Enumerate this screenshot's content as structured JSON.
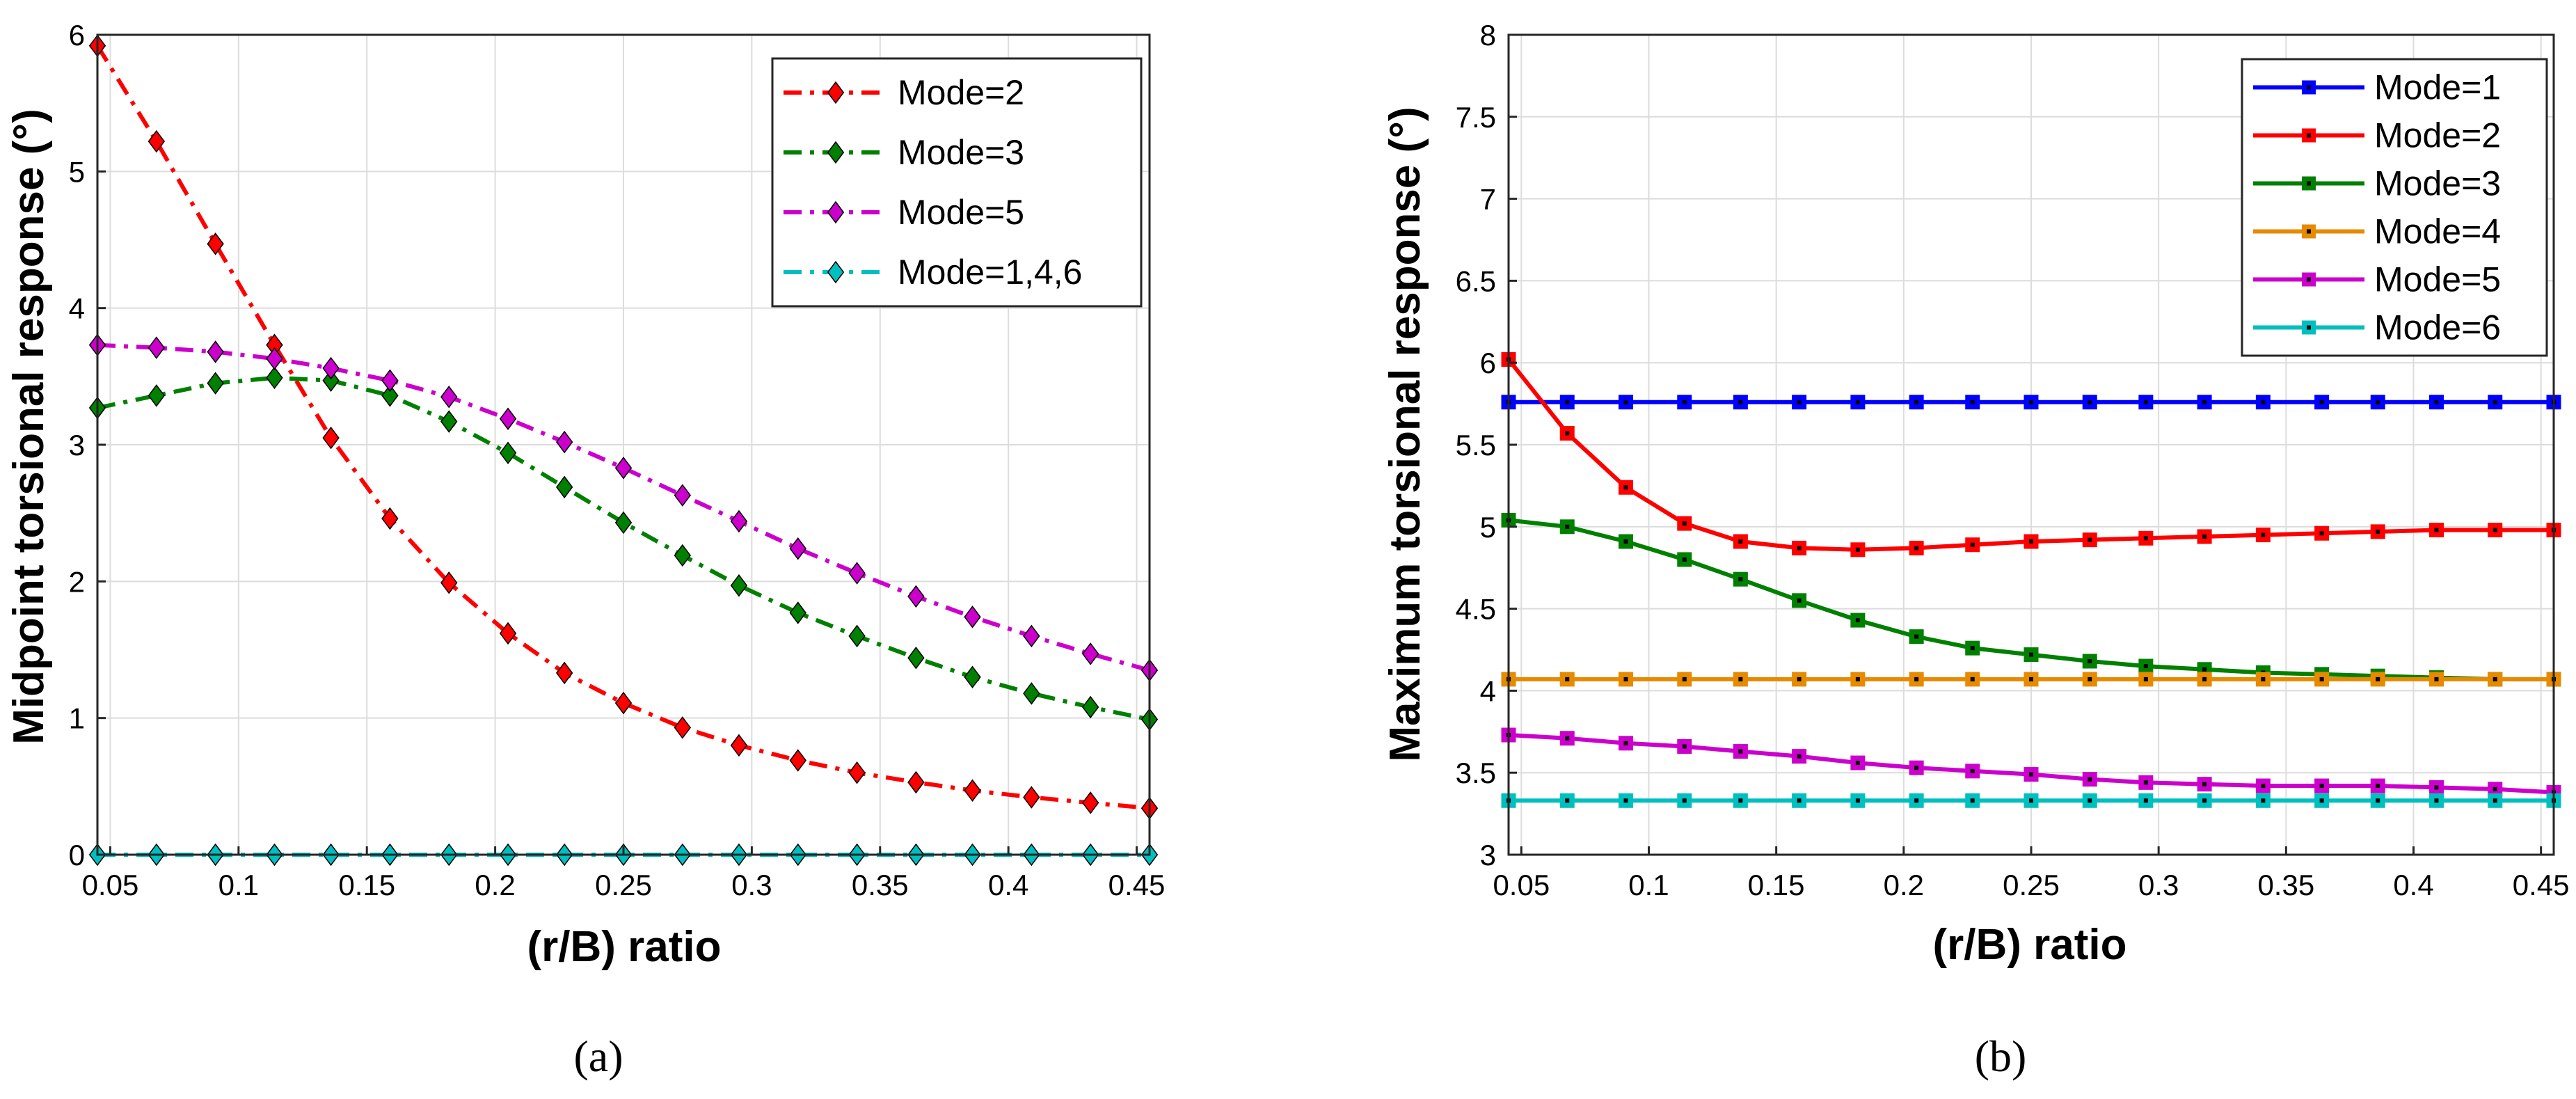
{
  "chart_data": [
    {
      "type": "line",
      "caption": "(a)",
      "xlabel": "(r/B) ratio",
      "ylabel": "Midpoint torsional response (°)",
      "xlim": [
        0.045,
        0.455
      ],
      "ylim": [
        0,
        6
      ],
      "xticks": [
        0.05,
        0.1,
        0.15,
        0.2,
        0.25,
        0.3,
        0.35,
        0.4,
        0.45
      ],
      "xtick_labels": [
        "0.05",
        "0.1",
        "0.15",
        "0.2",
        "0.25",
        "0.3",
        "0.35",
        "0.4",
        "0.45"
      ],
      "yticks": [
        0,
        1,
        2,
        3,
        4,
        5,
        6
      ],
      "ytick_labels": [
        "0",
        "1",
        "2",
        "3",
        "4",
        "5",
        "6"
      ],
      "grid": true,
      "legend_position": "top-right",
      "x": [
        0.045,
        0.068,
        0.091,
        0.114,
        0.136,
        0.159,
        0.182,
        0.205,
        0.227,
        0.25,
        0.273,
        0.295,
        0.318,
        0.341,
        0.364,
        0.386,
        0.409,
        0.432,
        0.455
      ],
      "series": [
        {
          "name": "Mode=2",
          "color": "#ff0000",
          "dash": "dashdot",
          "marker": "diamond",
          "values": [
            5.92,
            5.22,
            4.47,
            3.73,
            3.05,
            2.46,
            1.99,
            1.62,
            1.33,
            1.11,
            0.93,
            0.8,
            0.69,
            0.6,
            0.53,
            0.47,
            0.42,
            0.38,
            0.34
          ]
        },
        {
          "name": "Mode=3",
          "color": "#008000",
          "dash": "dashdot",
          "marker": "diamond",
          "values": [
            3.27,
            3.36,
            3.45,
            3.49,
            3.47,
            3.36,
            3.17,
            2.94,
            2.69,
            2.43,
            2.19,
            1.97,
            1.77,
            1.6,
            1.44,
            1.3,
            1.18,
            1.08,
            0.99
          ]
        },
        {
          "name": "Mode=5",
          "color": "#cc00cc",
          "dash": "dashdot",
          "marker": "diamond",
          "values": [
            3.73,
            3.71,
            3.68,
            3.63,
            3.56,
            3.47,
            3.35,
            3.19,
            3.02,
            2.83,
            2.63,
            2.44,
            2.24,
            2.06,
            1.89,
            1.74,
            1.6,
            1.47,
            1.35
          ]
        },
        {
          "name": "Mode=1,4,6",
          "color": "#00bfbf",
          "dash": "dashdot",
          "marker": "diamond",
          "values": [
            0,
            0,
            0,
            0,
            0,
            0,
            0,
            0,
            0,
            0,
            0,
            0,
            0,
            0,
            0,
            0,
            0,
            0,
            0
          ]
        }
      ]
    },
    {
      "type": "line",
      "caption": "(b)",
      "xlabel": "(r/B) ratio",
      "ylabel": "Maximum torsional response (°)",
      "xlim": [
        0.045,
        0.455
      ],
      "ylim": [
        3,
        8
      ],
      "xticks": [
        0.05,
        0.1,
        0.15,
        0.2,
        0.25,
        0.3,
        0.35,
        0.4,
        0.45
      ],
      "xtick_labels": [
        "0.05",
        "0.1",
        "0.15",
        "0.2",
        "0.25",
        "0.3",
        "0.35",
        "0.4",
        "0.45"
      ],
      "yticks": [
        3,
        3.5,
        4,
        4.5,
        5,
        5.5,
        6,
        6.5,
        7,
        7.5,
        8
      ],
      "ytick_labels": [
        "3",
        "3.5",
        "4",
        "4.5",
        "5",
        "5.5",
        "6",
        "6.5",
        "7",
        "7.5",
        "8"
      ],
      "grid": true,
      "legend_position": "top-right",
      "x": [
        0.045,
        0.068,
        0.091,
        0.114,
        0.136,
        0.159,
        0.182,
        0.205,
        0.227,
        0.25,
        0.273,
        0.295,
        0.318,
        0.341,
        0.364,
        0.386,
        0.409,
        0.432,
        0.455
      ],
      "series": [
        {
          "name": "Mode=1",
          "color": "#0000ff",
          "dash": "solid",
          "marker": "square",
          "values": [
            5.76,
            5.76,
            5.76,
            5.76,
            5.76,
            5.76,
            5.76,
            5.76,
            5.76,
            5.76,
            5.76,
            5.76,
            5.76,
            5.76,
            5.76,
            5.76,
            5.76,
            5.76,
            5.76
          ]
        },
        {
          "name": "Mode=2",
          "color": "#ff0000",
          "dash": "solid",
          "marker": "square",
          "values": [
            6.02,
            5.57,
            5.24,
            5.02,
            4.91,
            4.87,
            4.86,
            4.87,
            4.89,
            4.91,
            4.92,
            4.93,
            4.94,
            4.95,
            4.96,
            4.97,
            4.98,
            4.98,
            4.98
          ]
        },
        {
          "name": "Mode=3",
          "color": "#008000",
          "dash": "solid",
          "marker": "square",
          "values": [
            5.04,
            5.0,
            4.91,
            4.8,
            4.68,
            4.55,
            4.43,
            4.33,
            4.26,
            4.22,
            4.18,
            4.15,
            4.13,
            4.11,
            4.1,
            4.09,
            4.08,
            4.07,
            4.07
          ]
        },
        {
          "name": "Mode=4",
          "color": "#e68a00",
          "dash": "solid",
          "marker": "square",
          "values": [
            4.07,
            4.07,
            4.07,
            4.07,
            4.07,
            4.07,
            4.07,
            4.07,
            4.07,
            4.07,
            4.07,
            4.07,
            4.07,
            4.07,
            4.07,
            4.07,
            4.07,
            4.07,
            4.07
          ]
        },
        {
          "name": "Mode=5",
          "color": "#cc00cc",
          "dash": "solid",
          "marker": "square",
          "values": [
            3.73,
            3.71,
            3.68,
            3.66,
            3.63,
            3.6,
            3.56,
            3.53,
            3.51,
            3.49,
            3.46,
            3.44,
            3.43,
            3.42,
            3.42,
            3.42,
            3.41,
            3.4,
            3.38
          ]
        },
        {
          "name": "Mode=6",
          "color": "#00bfbf",
          "dash": "solid",
          "marker": "square",
          "values": [
            3.33,
            3.33,
            3.33,
            3.33,
            3.33,
            3.33,
            3.33,
            3.33,
            3.33,
            3.33,
            3.33,
            3.33,
            3.33,
            3.33,
            3.33,
            3.33,
            3.33,
            3.33,
            3.33
          ]
        }
      ]
    }
  ]
}
